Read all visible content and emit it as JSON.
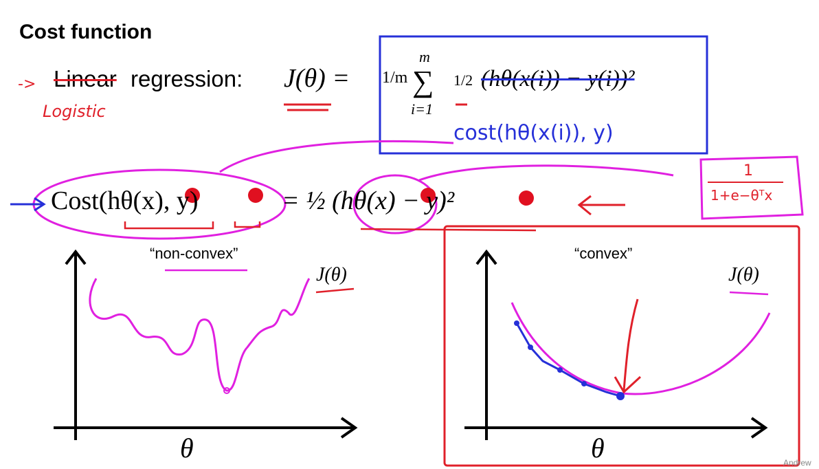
{
  "slide": {
    "title": "Cost function",
    "linear_row": {
      "arrow": "->",
      "word_linear": "Linear",
      "word_regression": "regression:",
      "lhs": "J(θ) =",
      "frac_1m": "1/m",
      "sum_top": "m",
      "sum_bottom": "i=1",
      "half": "1/2",
      "term": "(hθ(x(i)) − y(i))²",
      "annotation_logistic": "Logistic",
      "annotation_cost": "cost(hθ(x(i)), y)"
    },
    "cost_row": {
      "formula_left": "Cost(hθ(x), y)",
      "formula_right": "= ½ (hθ(x) − y)²",
      "sigmoid_num": "1",
      "sigmoid_den": "1+e−θᵀx"
    },
    "left_plot": {
      "label": "“non-convex”",
      "curve_label": "J(θ)",
      "x_axis_label": "θ"
    },
    "right_plot": {
      "label": "“convex”",
      "curve_label": "J(θ)",
      "x_axis_label": "θ"
    },
    "footer_text": "Andrew"
  }
}
